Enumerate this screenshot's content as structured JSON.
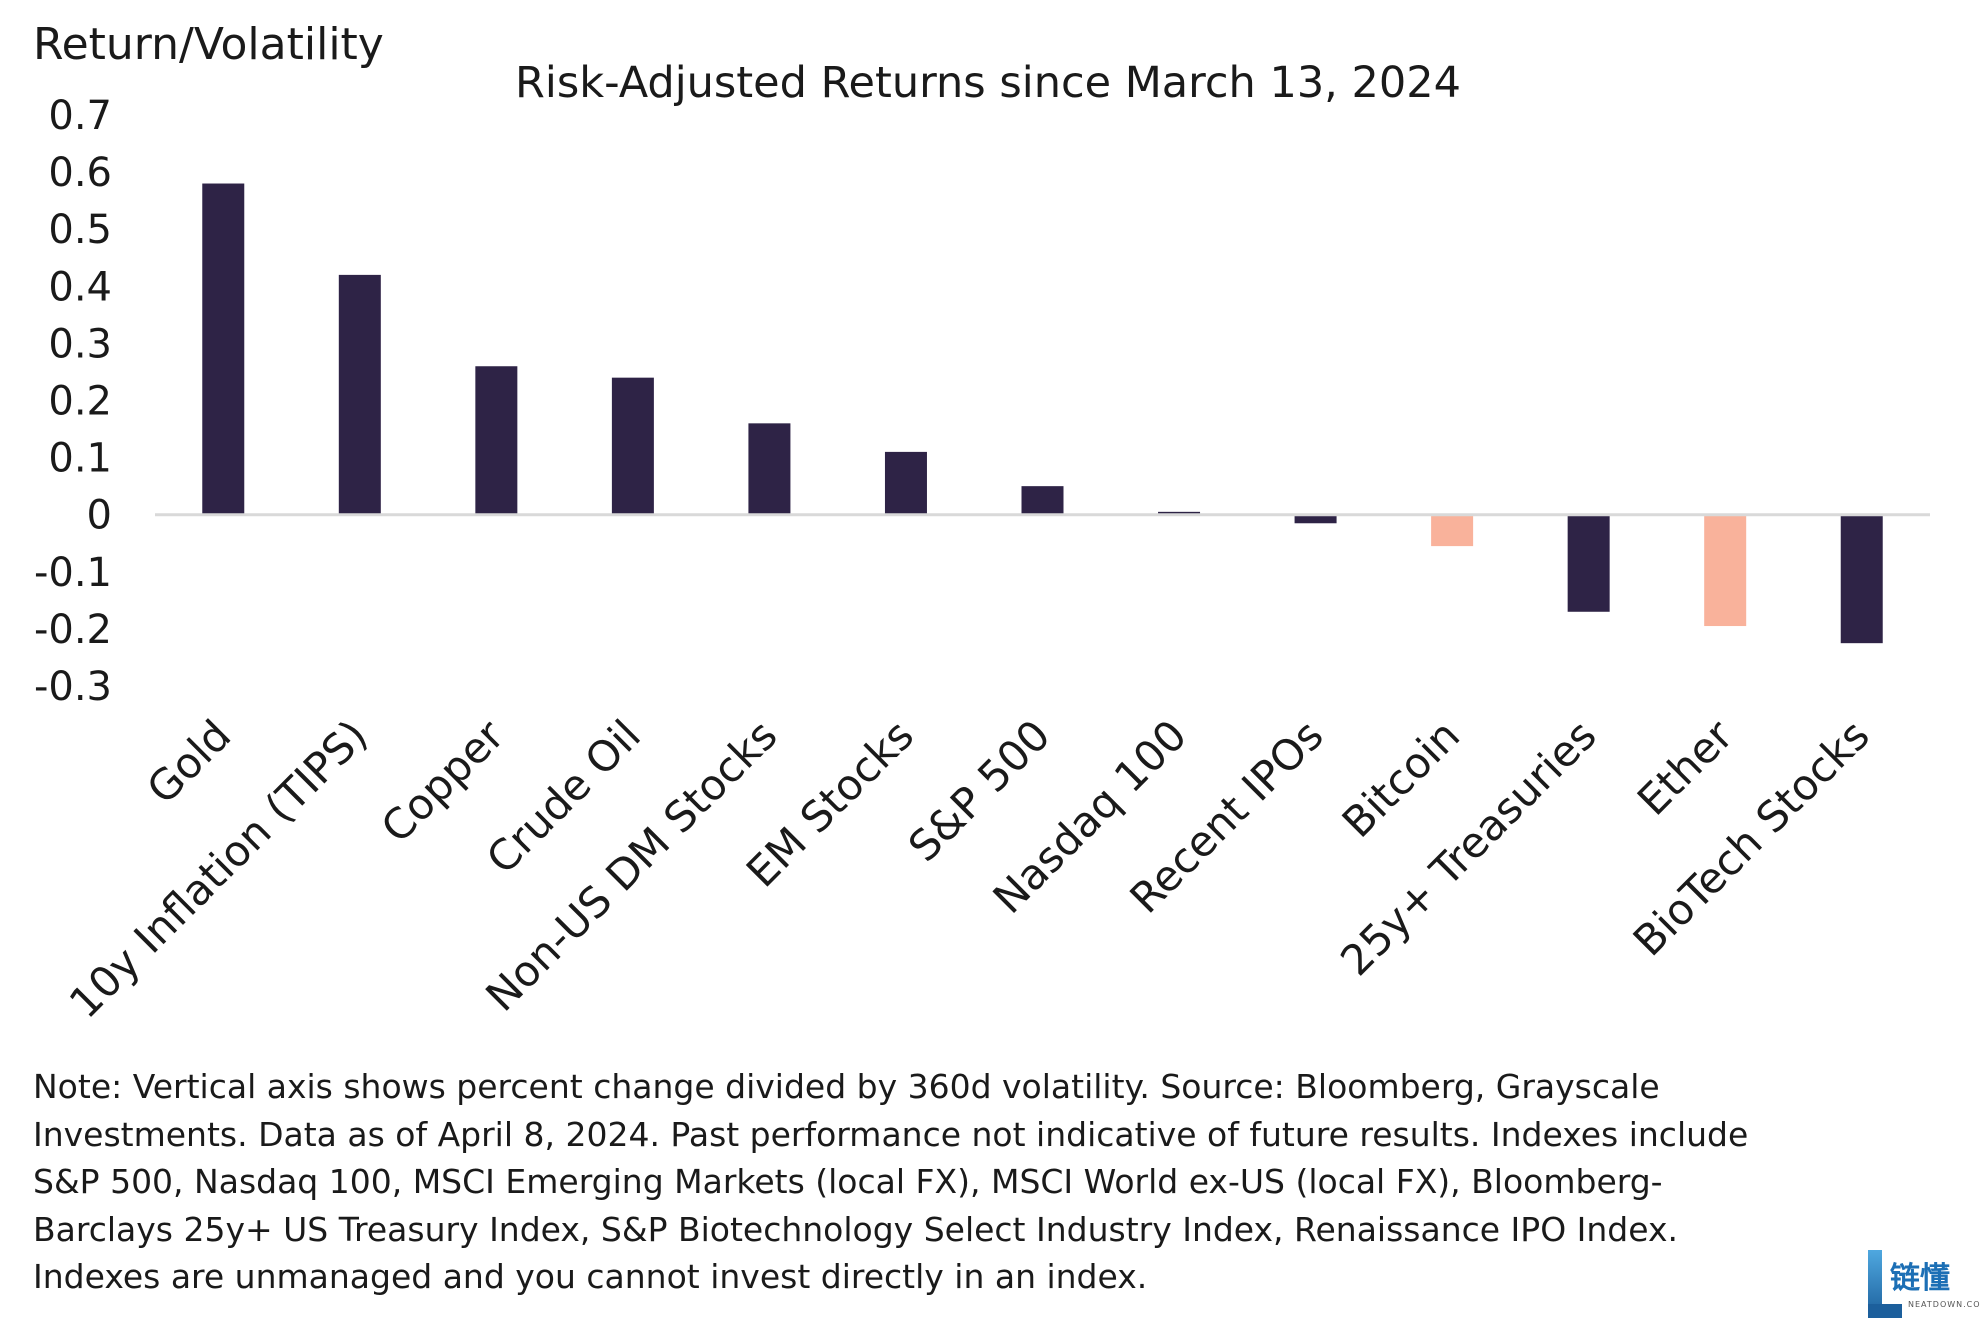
{
  "chart_data": {
    "type": "bar",
    "title": "Risk-Adjusted Returns since March 13, 2024",
    "ylabel": "Return/Volatility",
    "xlabel": "",
    "ylim": [
      -0.3,
      0.7
    ],
    "yticks": [
      0.7,
      0.6,
      0.5,
      0.4,
      0.3,
      0.2,
      0.1,
      0,
      -0.1,
      -0.2,
      -0.3
    ],
    "ytick_labels": [
      "0.7",
      "0.6",
      "0.5",
      "0.4",
      "0.3",
      "0.2",
      "0.1",
      "0",
      "-0.1",
      "-0.2",
      "-0.3"
    ],
    "grid": false,
    "categories": [
      "Gold",
      "10y Inflation (TIPS)",
      "Copper",
      "Crude Oil",
      "Non-US DM Stocks",
      "EM Stocks",
      "S&P 500",
      "Nasdaq 100",
      "Recent IPOs",
      "Bitcoin",
      "25y+ Treasuries",
      "Ether",
      "BioTech Stocks"
    ],
    "values": [
      0.58,
      0.42,
      0.26,
      0.24,
      0.16,
      0.11,
      0.05,
      0.005,
      -0.015,
      -0.055,
      -0.17,
      -0.195,
      -0.225
    ],
    "highlight": [
      false,
      false,
      false,
      false,
      false,
      false,
      false,
      false,
      false,
      true,
      false,
      true,
      false
    ],
    "colors": {
      "default": "#2e2346",
      "highlight": "#f9b29b",
      "axis": "#d9d9d9"
    }
  },
  "note_lines": [
    "Note: Vertical axis shows percent change divided by 360d volatility. Source: Bloomberg, Grayscale",
    "Investments. Data as of April 8, 2024. Past performance not indicative of future results. Indexes include",
    "S&P 500, Nasdaq 100, MSCI Emerging Markets (local FX), MSCI World ex-US (local FX),  Bloomberg-",
    "Barclays 25y+ US Treasury Index, S&P Biotechnology Select Industry Index, Renaissance IPO Index.",
    "Indexes are unmanaged and you cannot invest directly in an index."
  ],
  "logo": {
    "text": "链懂",
    "subtext": "NEATDOWN.COM"
  }
}
